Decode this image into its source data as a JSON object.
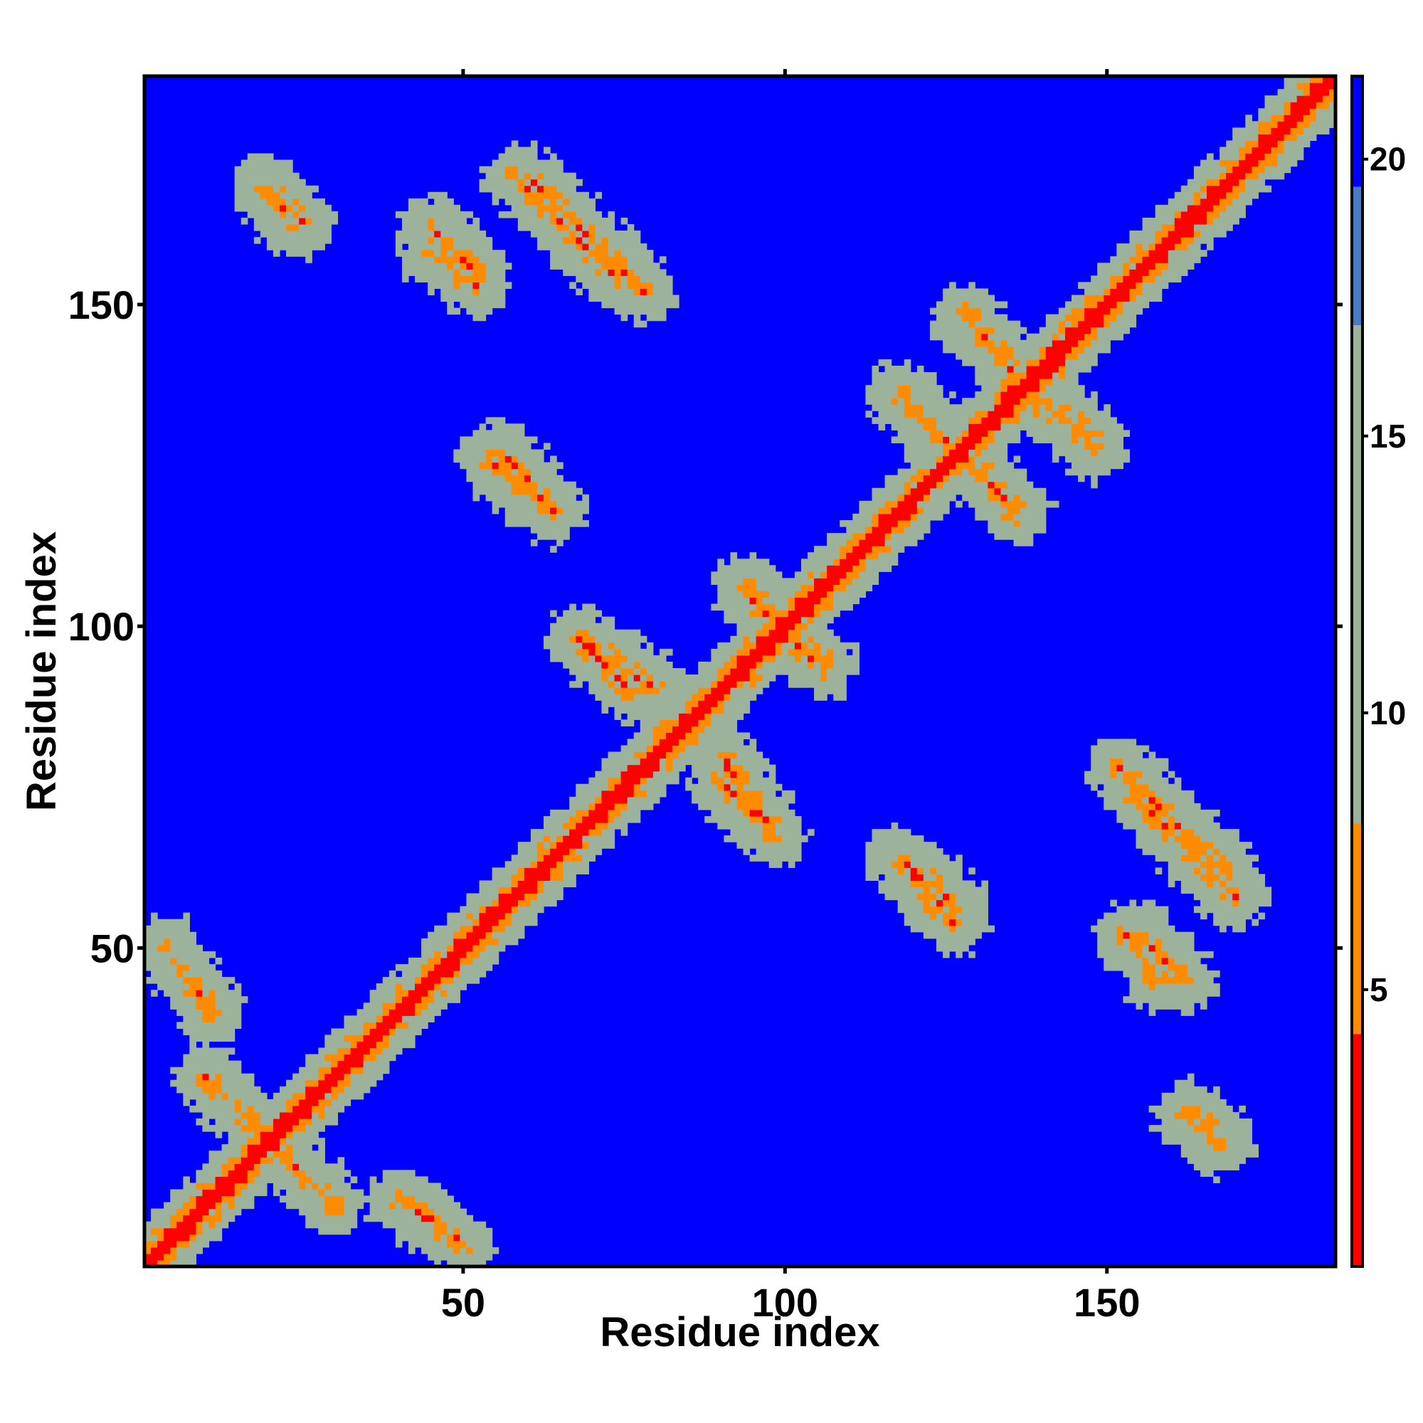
{
  "chart_data": {
    "type": "heatmap",
    "title": "",
    "xlabel": "Residue index",
    "ylabel": "Residue index",
    "n_residues": 185,
    "xlim": [
      1,
      185
    ],
    "ylim": [
      1,
      185
    ],
    "x_ticks": [
      50,
      100,
      150
    ],
    "y_ticks": [
      50,
      100,
      150
    ],
    "colorbar": {
      "range": [
        0,
        21.5
      ],
      "ticks": [
        5,
        10,
        15,
        20
      ],
      "colors": {
        "contact": "#ff0000",
        "near": "#ff8c00",
        "mid": "#9db29a",
        "far": "#0000ff"
      }
    },
    "contact_bands": [
      {
        "type": "diagonal",
        "residues": [
          1,
          185
        ],
        "distance": 3.8
      },
      {
        "type": "antiparallel",
        "i": [
          58,
          74
        ],
        "j": [
          170,
          154
        ],
        "distance": 5.5
      },
      {
        "type": "antiparallel",
        "i": [
          45,
          52
        ],
        "j": [
          162,
          155
        ],
        "distance": 5.5
      },
      {
        "type": "antiparallel",
        "i": [
          20,
          25
        ],
        "j": [
          168,
          163
        ],
        "distance": 6.0
      },
      {
        "type": "antiparallel",
        "i": [
          54,
          64
        ],
        "j": [
          126,
          118
        ],
        "distance": 5.5
      },
      {
        "type": "antiparallel",
        "i": [
          68,
          80
        ],
        "j": [
          98,
          90
        ],
        "distance": 5.5
      },
      {
        "type": "antiparallel",
        "i": [
          90,
          98
        ],
        "j": [
          76,
          68
        ],
        "distance": 5.5
      },
      {
        "type": "antiparallel",
        "i": [
          95,
          106
        ],
        "j": [
          104,
          94
        ],
        "distance": 5.0
      },
      {
        "type": "antiparallel",
        "i": [
          128,
          138
        ],
        "j": [
          148,
          137
        ],
        "distance": 5.0
      },
      {
        "type": "antiparallel",
        "i": [
          118,
          128
        ],
        "j": [
          136,
          126
        ],
        "distance": 5.0
      },
      {
        "type": "antiparallel",
        "i": [
          118,
          127
        ],
        "j": [
          64,
          56
        ],
        "distance": 5.5
      },
      {
        "type": "antiparallel",
        "i": [
          152,
          169
        ],
        "j": [
          78,
          61
        ],
        "distance": 5.5
      },
      {
        "type": "antiparallel",
        "i": [
          153,
          158
        ],
        "j": [
          52,
          45
        ],
        "distance": 6.0
      },
      {
        "type": "antiparallel",
        "i": [
          162,
          168
        ],
        "j": [
          24,
          19
        ],
        "distance": 6.0
      },
      {
        "type": "antiparallel",
        "i": [
          40,
          50
        ],
        "j": [
          11,
          4
        ],
        "distance": 6.0
      },
      {
        "type": "antiparallel",
        "i": [
          10,
          22
        ],
        "j": [
          30,
          18
        ],
        "distance": 6.0
      }
    ]
  }
}
